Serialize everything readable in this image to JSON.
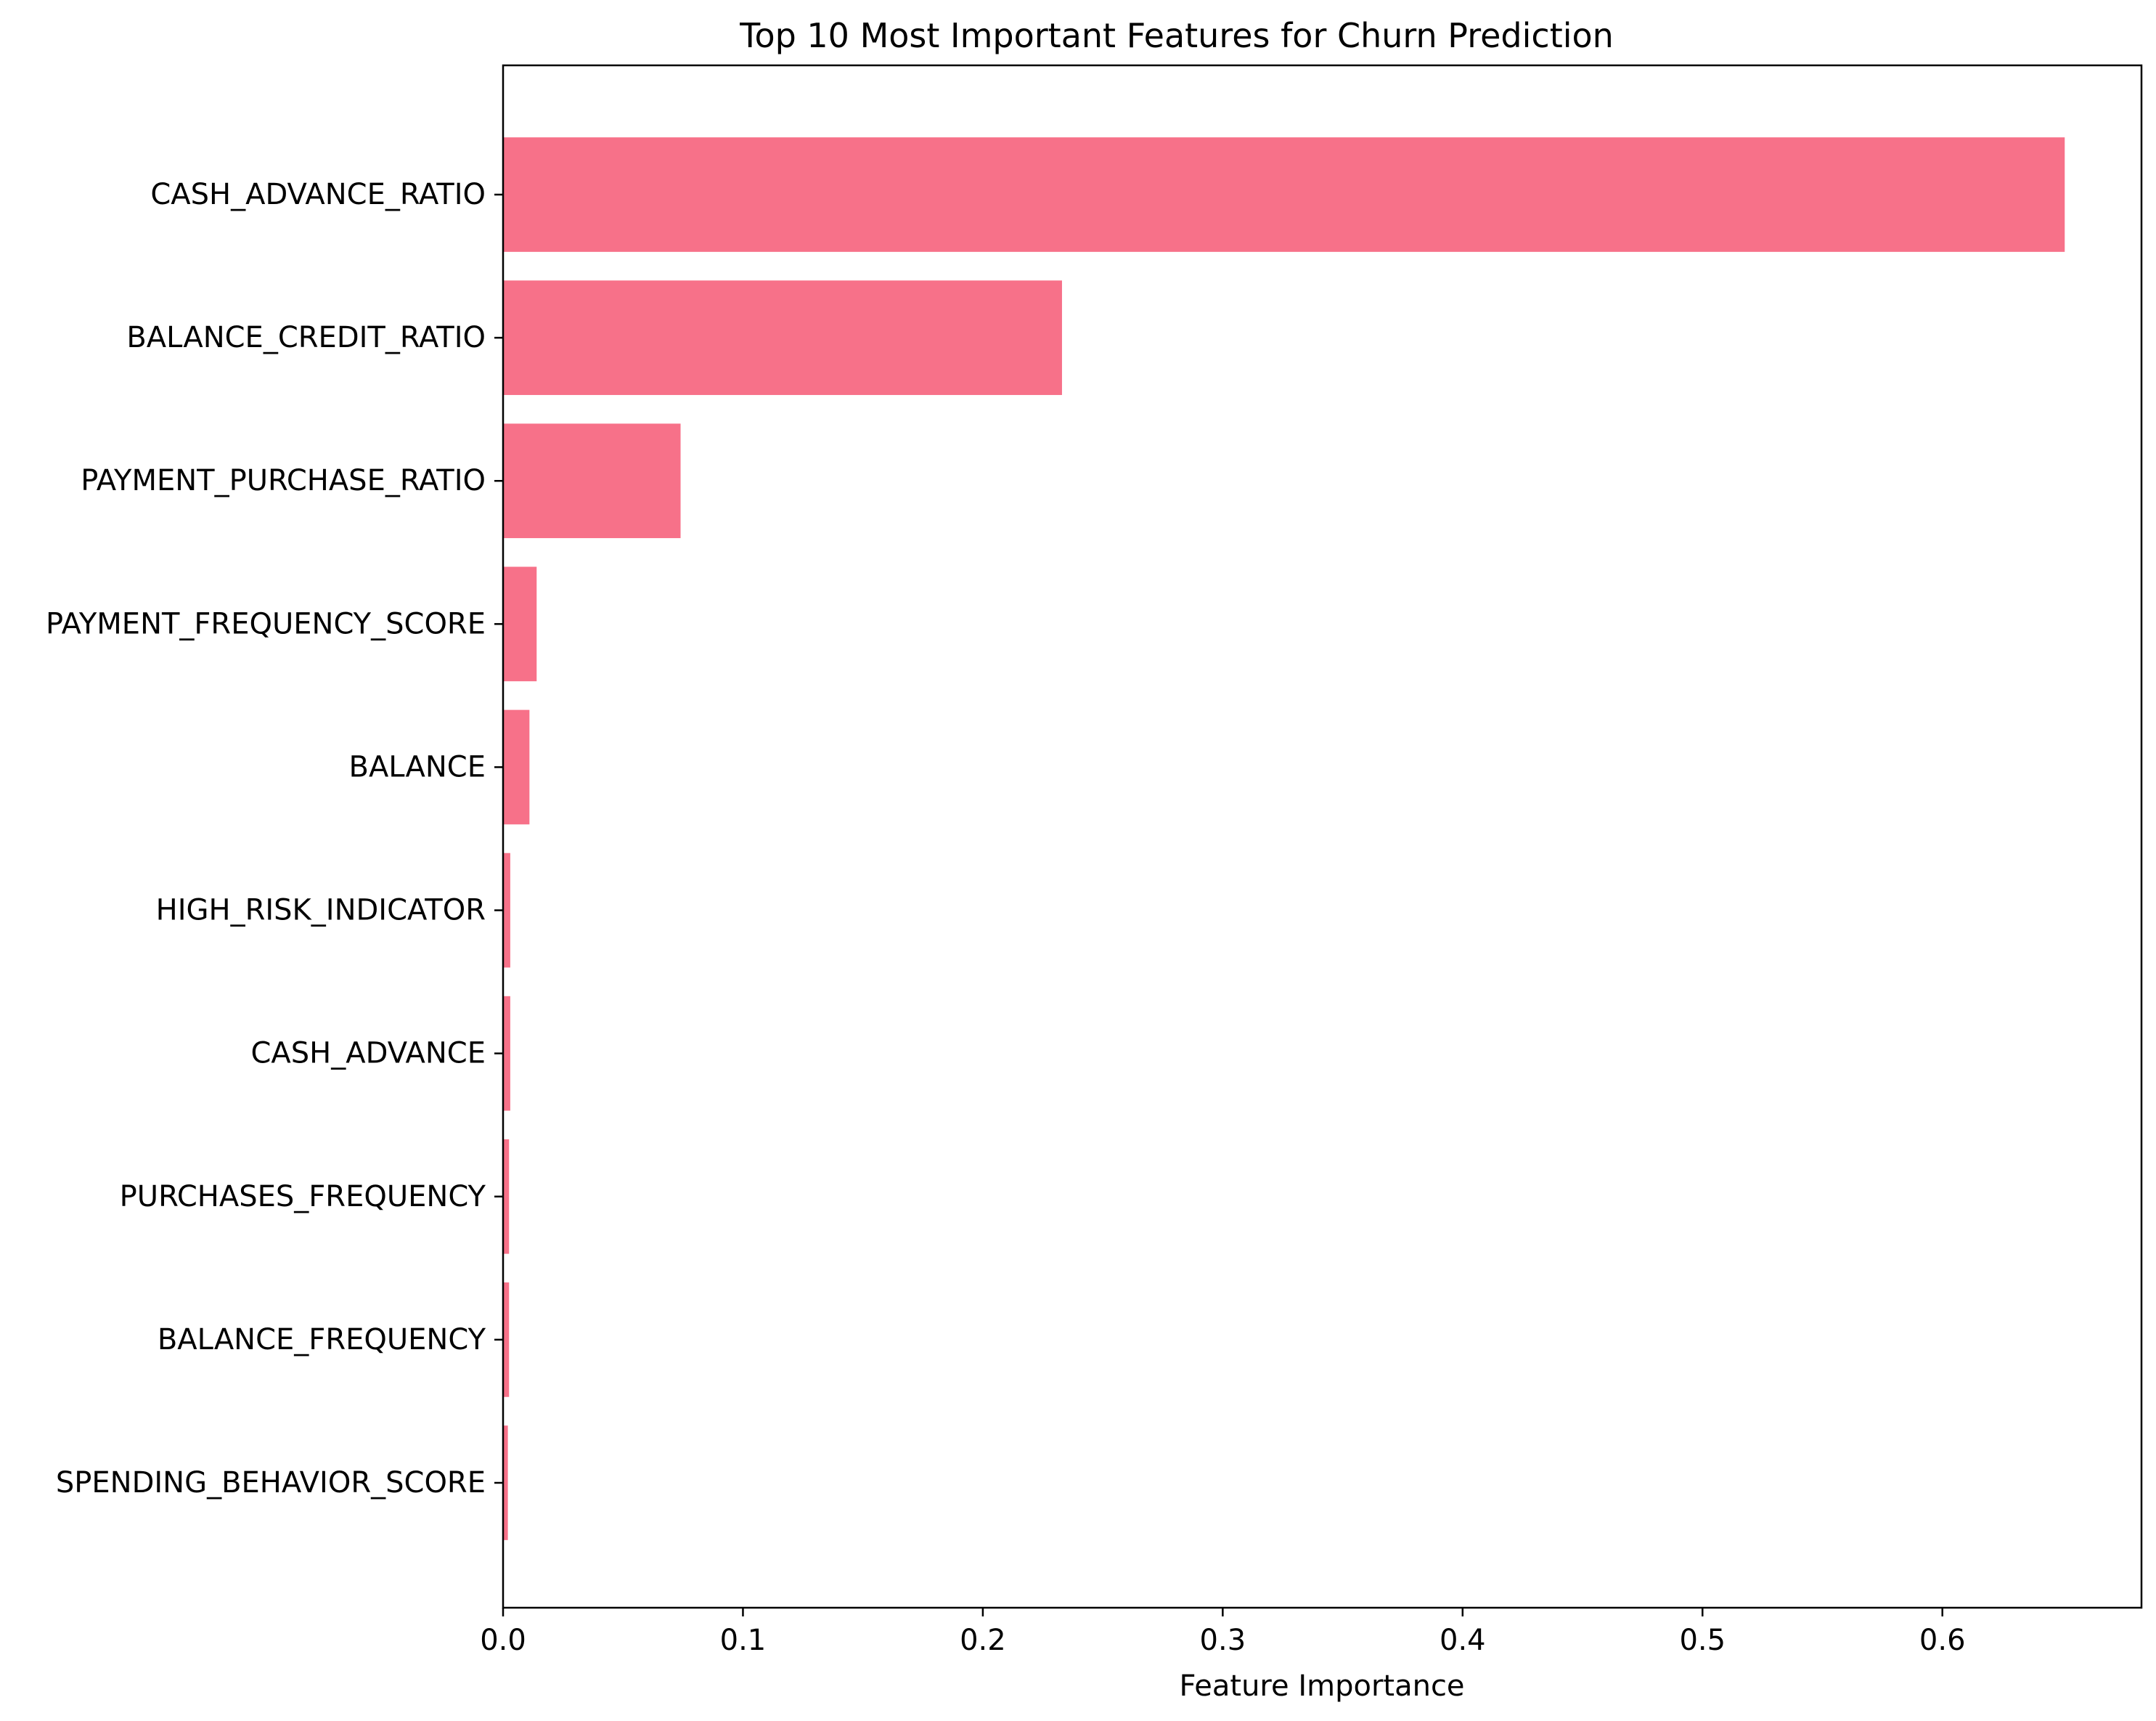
{
  "chart_data": {
    "type": "bar",
    "orientation": "horizontal",
    "title": "Top 10 Most Important Features for Churn Prediction",
    "xlabel": "Feature Importance",
    "ylabel": "",
    "categories": [
      "CASH_ADVANCE_RATIO",
      "BALANCE_CREDIT_RATIO",
      "PAYMENT_PURCHASE_RATIO",
      "PAYMENT_FREQUENCY_SCORE",
      "BALANCE",
      "HIGH_RISK_INDICATOR",
      "CASH_ADVANCE",
      "PURCHASES_FREQUENCY",
      "BALANCE_FREQUENCY",
      "SPENDING_BEHAVIOR_SCORE"
    ],
    "values": [
      0.651,
      0.233,
      0.074,
      0.014,
      0.011,
      0.003,
      0.003,
      0.0025,
      0.0025,
      0.002
    ],
    "xlim": [
      0,
      0.683
    ],
    "xticks": [
      0.0,
      0.1,
      0.2,
      0.3,
      0.4,
      0.5,
      0.6
    ],
    "xtick_labels": [
      "0.0",
      "0.1",
      "0.2",
      "0.3",
      "0.4",
      "0.5",
      "0.6"
    ],
    "bar_color": "#f77189",
    "grid": false,
    "legend": null
  }
}
